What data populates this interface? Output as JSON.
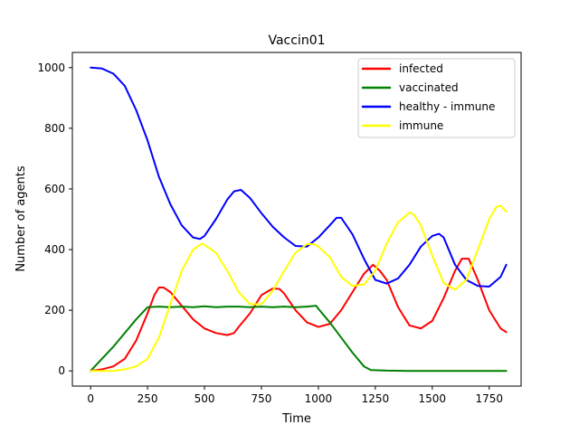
{
  "chart_data": {
    "type": "line",
    "title": "Vaccin01",
    "xlabel": "Time",
    "ylabel": "Number of agents",
    "xlim": [
      -80,
      1890
    ],
    "ylim": [
      -50,
      1050
    ],
    "xticks": [
      "0",
      "250",
      "500",
      "750",
      "1000",
      "1250",
      "1500",
      "1750"
    ],
    "xtick_values": [
      0,
      250,
      500,
      750,
      1000,
      1250,
      1500,
      1750
    ],
    "yticks": [
      "0",
      "200",
      "400",
      "600",
      "800",
      "1000"
    ],
    "ytick_values": [
      0,
      200,
      400,
      600,
      800,
      1000
    ],
    "grid": false,
    "legend_position": "top-right",
    "series": [
      {
        "name": "infected",
        "color": "#ff0000",
        "points": [
          [
            0,
            0
          ],
          [
            50,
            5
          ],
          [
            100,
            15
          ],
          [
            150,
            40
          ],
          [
            200,
            100
          ],
          [
            250,
            190
          ],
          [
            280,
            250
          ],
          [
            300,
            275
          ],
          [
            320,
            275
          ],
          [
            350,
            260
          ],
          [
            400,
            215
          ],
          [
            450,
            170
          ],
          [
            500,
            140
          ],
          [
            550,
            125
          ],
          [
            600,
            118
          ],
          [
            630,
            125
          ],
          [
            650,
            145
          ],
          [
            700,
            190
          ],
          [
            750,
            250
          ],
          [
            800,
            272
          ],
          [
            830,
            270
          ],
          [
            850,
            255
          ],
          [
            900,
            200
          ],
          [
            950,
            160
          ],
          [
            1000,
            145
          ],
          [
            1050,
            155
          ],
          [
            1100,
            200
          ],
          [
            1150,
            260
          ],
          [
            1200,
            320
          ],
          [
            1240,
            350
          ],
          [
            1270,
            330
          ],
          [
            1300,
            300
          ],
          [
            1350,
            210
          ],
          [
            1400,
            150
          ],
          [
            1450,
            140
          ],
          [
            1500,
            165
          ],
          [
            1550,
            240
          ],
          [
            1600,
            330
          ],
          [
            1630,
            370
          ],
          [
            1660,
            370
          ],
          [
            1700,
            300
          ],
          [
            1750,
            200
          ],
          [
            1800,
            140
          ],
          [
            1825,
            128
          ]
        ]
      },
      {
        "name": "vaccinated",
        "color": "#008000",
        "points": [
          [
            0,
            0
          ],
          [
            100,
            80
          ],
          [
            200,
            170
          ],
          [
            250,
            210
          ],
          [
            300,
            212
          ],
          [
            350,
            210
          ],
          [
            400,
            212
          ],
          [
            450,
            210
          ],
          [
            500,
            213
          ],
          [
            550,
            210
          ],
          [
            600,
            212
          ],
          [
            650,
            212
          ],
          [
            700,
            210
          ],
          [
            750,
            212
          ],
          [
            800,
            210
          ],
          [
            850,
            212
          ],
          [
            900,
            210
          ],
          [
            950,
            212
          ],
          [
            990,
            215
          ],
          [
            1000,
            205
          ],
          [
            1050,
            160
          ],
          [
            1100,
            110
          ],
          [
            1150,
            60
          ],
          [
            1200,
            15
          ],
          [
            1230,
            3
          ],
          [
            1300,
            1
          ],
          [
            1400,
            0
          ],
          [
            1600,
            0
          ],
          [
            1825,
            0
          ]
        ]
      },
      {
        "name": "healthy - immune",
        "color": "#0000ff",
        "points": [
          [
            0,
            1000
          ],
          [
            50,
            997
          ],
          [
            100,
            980
          ],
          [
            150,
            940
          ],
          [
            200,
            860
          ],
          [
            250,
            760
          ],
          [
            300,
            640
          ],
          [
            350,
            550
          ],
          [
            400,
            480
          ],
          [
            450,
            440
          ],
          [
            480,
            435
          ],
          [
            500,
            445
          ],
          [
            550,
            500
          ],
          [
            600,
            565
          ],
          [
            630,
            592
          ],
          [
            660,
            597
          ],
          [
            700,
            570
          ],
          [
            750,
            520
          ],
          [
            800,
            475
          ],
          [
            850,
            440
          ],
          [
            900,
            412
          ],
          [
            950,
            410
          ],
          [
            1000,
            440
          ],
          [
            1050,
            480
          ],
          [
            1080,
            505
          ],
          [
            1100,
            505
          ],
          [
            1150,
            450
          ],
          [
            1200,
            370
          ],
          [
            1250,
            300
          ],
          [
            1300,
            288
          ],
          [
            1350,
            305
          ],
          [
            1400,
            350
          ],
          [
            1450,
            410
          ],
          [
            1500,
            445
          ],
          [
            1530,
            452
          ],
          [
            1550,
            440
          ],
          [
            1600,
            350
          ],
          [
            1650,
            300
          ],
          [
            1700,
            280
          ],
          [
            1750,
            278
          ],
          [
            1800,
            310
          ],
          [
            1825,
            350
          ]
        ]
      },
      {
        "name": "immune",
        "color": "#ffff00",
        "points": [
          [
            0,
            0
          ],
          [
            100,
            0
          ],
          [
            150,
            5
          ],
          [
            200,
            15
          ],
          [
            250,
            40
          ],
          [
            300,
            110
          ],
          [
            350,
            220
          ],
          [
            400,
            330
          ],
          [
            450,
            400
          ],
          [
            490,
            420
          ],
          [
            550,
            390
          ],
          [
            600,
            330
          ],
          [
            650,
            260
          ],
          [
            700,
            220
          ],
          [
            750,
            220
          ],
          [
            800,
            265
          ],
          [
            850,
            330
          ],
          [
            900,
            390
          ],
          [
            950,
            418
          ],
          [
            980,
            418
          ],
          [
            1000,
            410
          ],
          [
            1050,
            375
          ],
          [
            1100,
            310
          ],
          [
            1150,
            280
          ],
          [
            1200,
            285
          ],
          [
            1250,
            330
          ],
          [
            1300,
            420
          ],
          [
            1350,
            490
          ],
          [
            1400,
            522
          ],
          [
            1420,
            515
          ],
          [
            1450,
            480
          ],
          [
            1500,
            380
          ],
          [
            1550,
            290
          ],
          [
            1600,
            268
          ],
          [
            1650,
            300
          ],
          [
            1700,
            400
          ],
          [
            1750,
            500
          ],
          [
            1780,
            540
          ],
          [
            1800,
            545
          ],
          [
            1825,
            525
          ]
        ]
      }
    ]
  }
}
